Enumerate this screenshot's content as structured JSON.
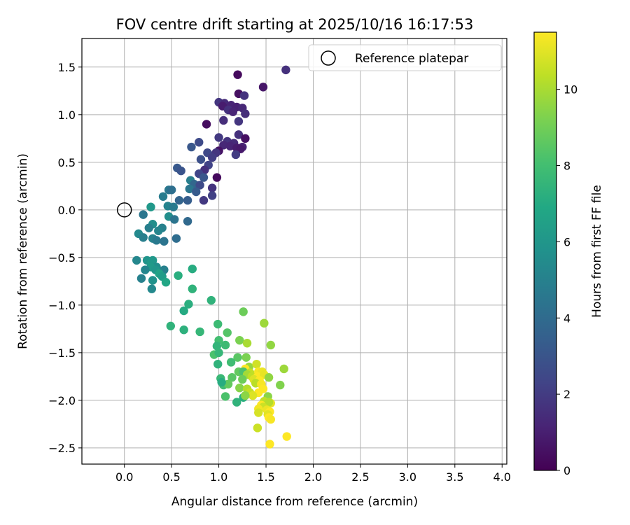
{
  "chart_data": {
    "type": "scatter",
    "title": "FOV centre drift starting at 2025/10/16 16:17:53",
    "xlabel": "Angular distance from reference (arcmin)",
    "ylabel": "Rotation from reference (arcmin)",
    "xlim": [
      -0.45,
      4.05
    ],
    "ylim": [
      -2.67,
      1.8
    ],
    "xticks": [
      0.0,
      0.5,
      1.0,
      1.5,
      2.0,
      2.5,
      3.0,
      3.5,
      4.0
    ],
    "xtick_labels": [
      "0.0",
      "0.5",
      "1.0",
      "1.5",
      "2.0",
      "2.5",
      "3.0",
      "3.5",
      "4.0"
    ],
    "yticks": [
      -2.5,
      -2.0,
      -1.5,
      -1.0,
      -0.5,
      0.0,
      0.5,
      1.0,
      1.5
    ],
    "ytick_labels": [
      "−2.5",
      "−2.0",
      "−1.5",
      "−1.0",
      "−0.5",
      "0.0",
      "0.5",
      "1.0",
      "1.5"
    ],
    "grid": true,
    "legend": {
      "position": "top-right",
      "entries": [
        "Reference platepar"
      ]
    },
    "reference_point": {
      "label": "Reference platepar",
      "x": 0.0,
      "y": 0.0
    },
    "colorbar": {
      "label": "Hours from first FF file",
      "colormap": "viridis",
      "range": [
        0,
        11.5
      ],
      "ticks": [
        0,
        2,
        4,
        6,
        8,
        10
      ],
      "tick_labels": [
        "0",
        "2",
        "4",
        "6",
        "8",
        "10"
      ]
    },
    "colormap_stops": [
      "#440154",
      "#482475",
      "#414487",
      "#355f8d",
      "#2a788e",
      "#21918c",
      "#22a884",
      "#44bf70",
      "#7ad151",
      "#bddf26",
      "#fde725"
    ],
    "points": [
      [
        1.2,
        1.42,
        0.3
      ],
      [
        1.71,
        1.47,
        1.6
      ],
      [
        1.47,
        1.29,
        0.7
      ],
      [
        1.21,
        1.22,
        0.5
      ],
      [
        1.27,
        1.2,
        1.7
      ],
      [
        1.0,
        1.13,
        1.8
      ],
      [
        1.06,
        1.12,
        1.4
      ],
      [
        1.04,
        1.09,
        0.9
      ],
      [
        1.13,
        1.1,
        1.2
      ],
      [
        1.19,
        1.08,
        1.1
      ],
      [
        1.25,
        1.07,
        1.3
      ],
      [
        1.1,
        1.05,
        1.6
      ],
      [
        1.15,
        1.03,
        1.2
      ],
      [
        1.28,
        1.01,
        1.5
      ],
      [
        1.21,
        0.93,
        1.8
      ],
      [
        1.05,
        0.94,
        1.5
      ],
      [
        0.87,
        0.9,
        0.4
      ],
      [
        1.0,
        0.76,
        1.9
      ],
      [
        1.21,
        0.79,
        1.6
      ],
      [
        1.28,
        0.75,
        0.5
      ],
      [
        1.09,
        0.72,
        1.7
      ],
      [
        1.16,
        0.7,
        1.4
      ],
      [
        1.05,
        0.68,
        1.3
      ],
      [
        1.12,
        0.67,
        1.2
      ],
      [
        1.25,
        0.66,
        1.1
      ],
      [
        1.19,
        0.65,
        0.9
      ],
      [
        1.0,
        0.62,
        0.6
      ],
      [
        1.23,
        0.64,
        0.8
      ],
      [
        0.97,
        0.6,
        1.8
      ],
      [
        1.18,
        0.58,
        2.0
      ],
      [
        0.79,
        0.71,
        2.6
      ],
      [
        0.71,
        0.66,
        3.1
      ],
      [
        0.88,
        0.6,
        2.5
      ],
      [
        0.93,
        0.55,
        2.1
      ],
      [
        0.81,
        0.53,
        2.8
      ],
      [
        0.89,
        0.47,
        2.3
      ],
      [
        0.85,
        0.42,
        1.6
      ],
      [
        0.56,
        0.44,
        3.2
      ],
      [
        0.6,
        0.41,
        3.0
      ],
      [
        0.79,
        0.38,
        2.4
      ],
      [
        0.84,
        0.34,
        3.1
      ],
      [
        0.98,
        0.34,
        0.3
      ],
      [
        0.7,
        0.31,
        4.9
      ],
      [
        0.74,
        0.27,
        3.8
      ],
      [
        0.8,
        0.26,
        2.6
      ],
      [
        0.93,
        0.23,
        1.7
      ],
      [
        0.69,
        0.22,
        4.5
      ],
      [
        0.76,
        0.19,
        3.3
      ],
      [
        0.84,
        0.1,
        1.9
      ],
      [
        0.93,
        0.15,
        2.2
      ],
      [
        0.47,
        0.21,
        4.6
      ],
      [
        0.5,
        0.21,
        4.2
      ],
      [
        0.41,
        0.14,
        4.8
      ],
      [
        0.58,
        0.1,
        3.7
      ],
      [
        0.67,
        0.1,
        3.4
      ],
      [
        0.46,
        0.04,
        5.1
      ],
      [
        0.52,
        0.03,
        4.7
      ],
      [
        0.28,
        0.03,
        6.1
      ],
      [
        0.2,
        -0.05,
        4.5
      ],
      [
        0.47,
        -0.07,
        5.6
      ],
      [
        0.53,
        -0.1,
        4.4
      ],
      [
        0.3,
        -0.15,
        5.6
      ],
      [
        0.26,
        -0.19,
        4.9
      ],
      [
        0.4,
        -0.19,
        5.0
      ],
      [
        0.36,
        -0.22,
        5.2
      ],
      [
        0.67,
        -0.12,
        3.9
      ],
      [
        0.15,
        -0.25,
        5.4
      ],
      [
        0.2,
        -0.29,
        4.9
      ],
      [
        0.3,
        -0.3,
        5.1
      ],
      [
        0.34,
        -0.32,
        4.7
      ],
      [
        0.42,
        -0.33,
        4.4
      ],
      [
        0.55,
        -0.3,
        4.1
      ],
      [
        0.13,
        -0.53,
        5.3
      ],
      [
        0.24,
        -0.53,
        5.9
      ],
      [
        0.29,
        -0.55,
        6.4
      ],
      [
        0.3,
        -0.53,
        6.1
      ],
      [
        0.34,
        -0.6,
        5.6
      ],
      [
        0.28,
        -0.6,
        6.2
      ],
      [
        0.22,
        -0.63,
        5.2
      ],
      [
        0.42,
        -0.63,
        5.0
      ],
      [
        0.33,
        -0.63,
        6.0
      ],
      [
        0.37,
        -0.67,
        6.6
      ],
      [
        0.4,
        -0.7,
        6.3
      ],
      [
        0.18,
        -0.72,
        5.0
      ],
      [
        0.3,
        -0.74,
        5.8
      ],
      [
        0.29,
        -0.83,
        5.4
      ],
      [
        0.44,
        -0.76,
        6.8
      ],
      [
        0.72,
        -0.62,
        7.1
      ],
      [
        0.57,
        -0.69,
        7.2
      ],
      [
        0.72,
        -0.83,
        7.4
      ],
      [
        0.92,
        -0.95,
        7.4
      ],
      [
        0.68,
        -0.99,
        7.2
      ],
      [
        0.63,
        -1.06,
        7.0
      ],
      [
        0.49,
        -1.22,
        7.4
      ],
      [
        0.63,
        -1.26,
        7.3
      ],
      [
        0.8,
        -1.28,
        7.6
      ],
      [
        1.26,
        -1.07,
        8.9
      ],
      [
        1.48,
        -1.19,
        9.8
      ],
      [
        0.99,
        -1.2,
        7.8
      ],
      [
        1.09,
        -1.29,
        8.4
      ],
      [
        1.22,
        -1.37,
        9.2
      ],
      [
        1.3,
        -1.4,
        10.0
      ],
      [
        1.0,
        -1.37,
        8.0
      ],
      [
        0.98,
        -1.43,
        7.5
      ],
      [
        1.07,
        -1.42,
        7.8
      ],
      [
        1.55,
        -1.42,
        9.6
      ],
      [
        0.95,
        -1.52,
        8.2
      ],
      [
        1.0,
        -1.5,
        7.6
      ],
      [
        1.2,
        -1.55,
        8.5
      ],
      [
        1.29,
        -1.55,
        9.2
      ],
      [
        1.13,
        -1.6,
        7.9
      ],
      [
        1.32,
        -1.65,
        9.7
      ],
      [
        1.4,
        -1.62,
        10.7
      ],
      [
        0.99,
        -1.62,
        7.4
      ],
      [
        1.28,
        -1.67,
        11.5
      ],
      [
        1.21,
        -1.7,
        8.7
      ],
      [
        1.26,
        -1.7,
        8.2
      ],
      [
        1.33,
        -1.71,
        10.4
      ],
      [
        1.42,
        -1.7,
        11.4
      ],
      [
        1.46,
        -1.7,
        11.2
      ],
      [
        1.69,
        -1.67,
        9.8
      ],
      [
        1.02,
        -1.77,
        7.7
      ],
      [
        1.14,
        -1.76,
        8.5
      ],
      [
        1.3,
        -1.73,
        9.9
      ],
      [
        1.35,
        -1.75,
        10.4
      ],
      [
        1.41,
        -1.75,
        11.5
      ],
      [
        1.48,
        -1.73,
        11.1
      ],
      [
        1.53,
        -1.76,
        9.6
      ],
      [
        1.37,
        -1.78,
        10.9
      ],
      [
        1.43,
        -1.79,
        11.6
      ],
      [
        1.25,
        -1.78,
        8.9
      ],
      [
        1.05,
        -1.84,
        7.9
      ],
      [
        1.1,
        -1.83,
        8.7
      ],
      [
        1.03,
        -1.81,
        7.1
      ],
      [
        1.39,
        -1.82,
        10.3
      ],
      [
        1.45,
        -1.83,
        11.4
      ],
      [
        1.65,
        -1.84,
        9.3
      ],
      [
        1.22,
        -1.87,
        9.4
      ],
      [
        1.3,
        -1.88,
        10.2
      ],
      [
        1.47,
        -1.88,
        11.5
      ],
      [
        1.33,
        -1.92,
        10.5
      ],
      [
        1.42,
        -1.92,
        11.6
      ],
      [
        1.36,
        -1.95,
        10.9
      ],
      [
        1.26,
        -1.97,
        7.2
      ],
      [
        1.28,
        -1.95,
        9.5
      ],
      [
        1.52,
        -1.96,
        9.5
      ],
      [
        1.07,
        -1.96,
        8.2
      ],
      [
        1.19,
        -2.02,
        7.4
      ],
      [
        1.48,
        -2.01,
        10.4
      ],
      [
        1.55,
        -2.03,
        11.1
      ],
      [
        1.53,
        -2.02,
        10.2
      ],
      [
        1.45,
        -2.05,
        11.6
      ],
      [
        1.47,
        -2.07,
        10.6
      ],
      [
        1.42,
        -2.09,
        11.3
      ],
      [
        1.51,
        -2.1,
        11.2
      ],
      [
        1.54,
        -2.12,
        11.5
      ],
      [
        1.42,
        -2.13,
        10.8
      ],
      [
        1.52,
        -2.15,
        11.0
      ],
      [
        1.53,
        -2.18,
        11.7
      ],
      [
        1.55,
        -2.2,
        11.4
      ],
      [
        1.41,
        -2.29,
        10.6
      ],
      [
        1.72,
        -2.38,
        11.5
      ],
      [
        1.54,
        -2.46,
        11.6
      ]
    ]
  }
}
